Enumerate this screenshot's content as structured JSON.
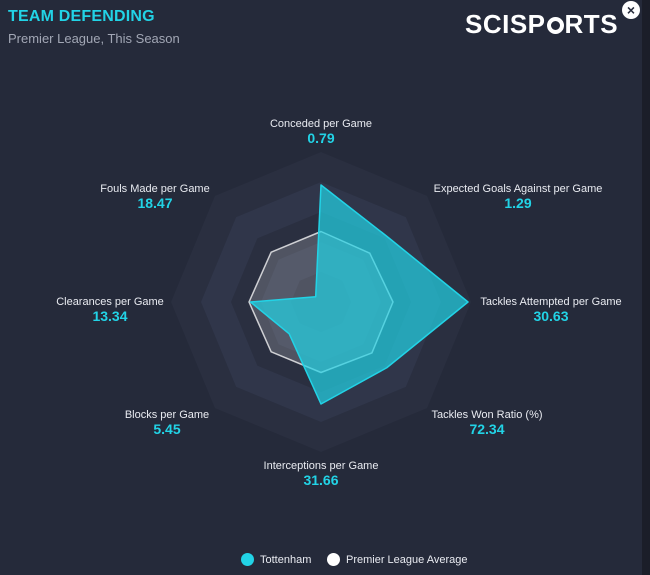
{
  "header": {
    "title": "TEAM DEFENDING",
    "subtitle": "Premier League, This Season",
    "logo_text_left": "SCISP",
    "logo_text_right": "RTS",
    "close_symbol": "×"
  },
  "colors": {
    "team": "#22d3e6",
    "average": "#ffffff",
    "background": "#252a3a"
  },
  "chart_data": {
    "type": "radar",
    "axes": [
      {
        "label": "Conceded per Game",
        "value": "0.79"
      },
      {
        "label": "Expected Goals Against per Game",
        "value": "1.29"
      },
      {
        "label": "Tackles Attempted per Game",
        "value": "30.63"
      },
      {
        "label": "Tackles Won Ratio (%)",
        "value": "72.34"
      },
      {
        "label": "Interceptions per Game",
        "value": "31.66"
      },
      {
        "label": "Blocks per Game",
        "value": "5.45"
      },
      {
        "label": "Clearances per Game",
        "value": "13.34"
      },
      {
        "label": "Fouls Made per Game",
        "value": "18.47"
      }
    ],
    "series": [
      {
        "name": "Tottenham",
        "normalized": [
          0.78,
          0.62,
          0.98,
          0.62,
          0.68,
          0.3,
          0.47,
          0.05
        ]
      },
      {
        "name": "Premier League Average",
        "normalized": [
          0.47,
          0.46,
          0.48,
          0.48,
          0.47,
          0.47,
          0.48,
          0.47
        ]
      }
    ],
    "rings": 5,
    "legend_position": "bottom"
  }
}
